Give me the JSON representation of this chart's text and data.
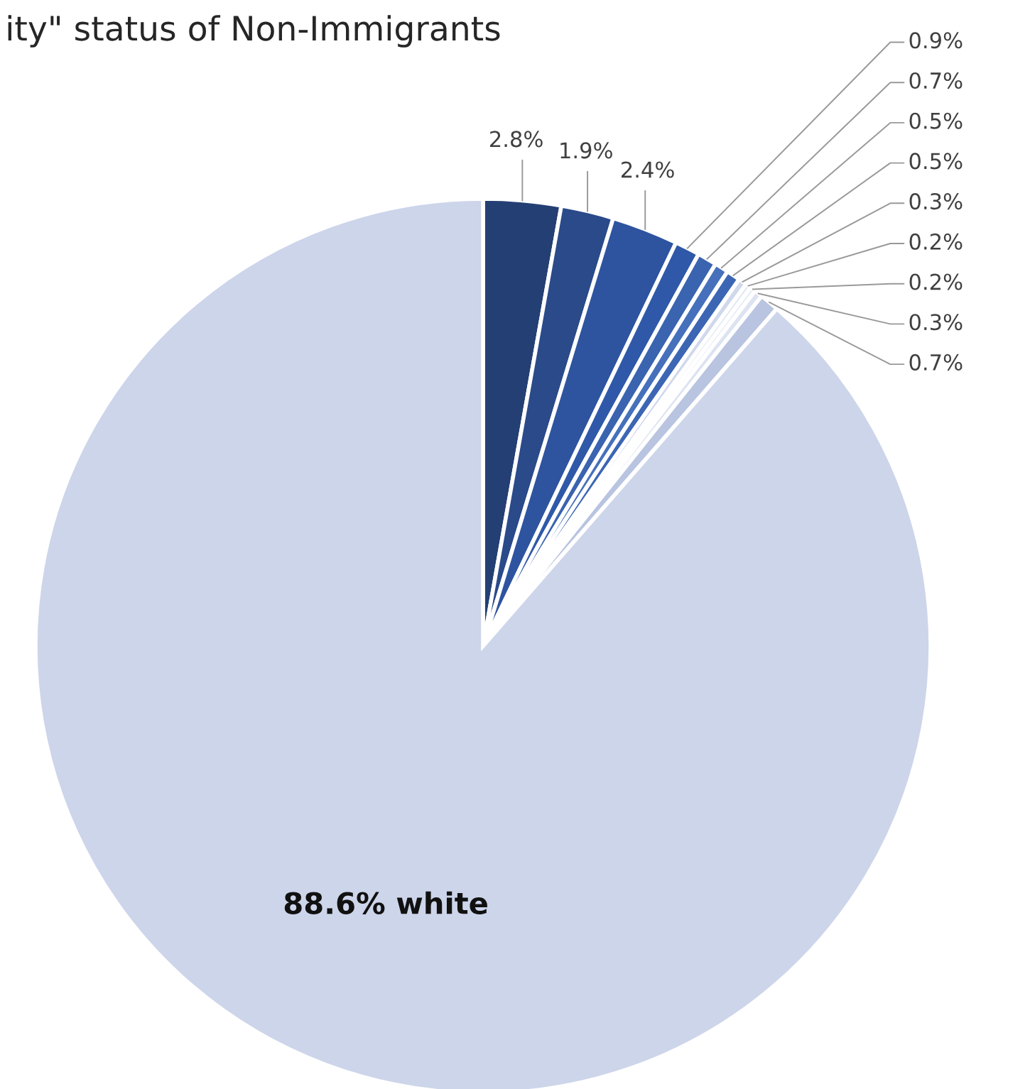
{
  "chart_data": {
    "type": "pie",
    "title": "ity\" status of Non-Immigrants",
    "categories": [
      null,
      null,
      null,
      null,
      null,
      null,
      null,
      null,
      null,
      null,
      null,
      null,
      "white"
    ],
    "values": [
      2.8,
      1.9,
      2.4,
      0.9,
      0.7,
      0.5,
      0.5,
      0.3,
      0.2,
      0.2,
      0.3,
      0.7,
      88.6
    ],
    "value_labels": [
      "2.8%",
      "1.9%",
      "2.4%",
      "0.9%",
      "0.7%",
      "0.5%",
      "0.5%",
      "0.3%",
      "0.2%",
      "0.2%",
      "0.3%",
      "0.7%",
      "88.6%"
    ],
    "colors": [
      "#243f73",
      "#2a4a8a",
      "#2e54a0",
      "#2f58a8",
      "#3a63b0",
      "#4670bb",
      "#3c66b4",
      "#d0d8ec",
      "#e0e6f3",
      "#e8ecf6",
      "#dde3f1",
      "#b8c4e0",
      "#cdd5ea"
    ]
  }
}
